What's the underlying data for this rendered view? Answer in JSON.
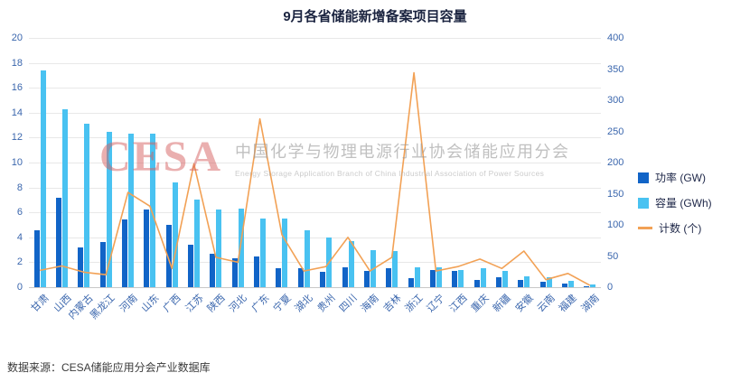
{
  "source": "数据来源：CESA储能应用分会产业数据库",
  "watermark": {
    "logo": "CESA",
    "cn": "中国化学与物理电源行业协会储能应用分会",
    "en": "Energy Storage Application Branch of China Industrial Association of Power Sources"
  },
  "colors": {
    "power": "#1164c7",
    "capacity": "#49c2f1",
    "count": "#f2a155",
    "axis_label": "#3a66ad",
    "grid": "#e8e8e8",
    "zero_line": "#c8c8c8",
    "title": "#1b2440"
  },
  "chart_data": {
    "type": "bar",
    "subtype": "bar+line combo, dual y-axis",
    "title": "9月各省储能新增备案项目容量",
    "categories": [
      "甘肃",
      "山西",
      "内蒙古",
      "黑龙江",
      "河南",
      "山东",
      "广西",
      "江苏",
      "陕西",
      "河北",
      "广东",
      "宁夏",
      "湖北",
      "贵州",
      "四川",
      "海南",
      "吉林",
      "浙江",
      "辽宁",
      "江西",
      "重庆",
      "新疆",
      "安徽",
      "云南",
      "福建",
      "湖南"
    ],
    "series": [
      {
        "name": "功率 (GW)",
        "type": "bar",
        "axis": "left",
        "values": [
          4.6,
          7.2,
          3.2,
          3.6,
          5.4,
          6.2,
          5.0,
          3.4,
          2.7,
          2.3,
          2.5,
          1.5,
          1.5,
          1.2,
          1.6,
          1.3,
          1.5,
          0.7,
          1.4,
          1.3,
          0.6,
          0.8,
          0.6,
          0.4,
          0.3,
          0.1
        ]
      },
      {
        "name": "容量 (GWh)",
        "type": "bar",
        "axis": "left",
        "values": [
          17.4,
          14.3,
          13.1,
          12.5,
          12.3,
          12.3,
          8.4,
          7.0,
          6.2,
          6.3,
          5.5,
          5.5,
          4.6,
          4.0,
          3.7,
          3.0,
          2.9,
          1.6,
          1.6,
          1.4,
          1.5,
          1.3,
          0.9,
          0.8,
          0.5,
          0.2
        ]
      },
      {
        "name": "计数 (个)",
        "type": "line",
        "axis": "right",
        "values": [
          27,
          34,
          24,
          20,
          152,
          130,
          30,
          198,
          48,
          40,
          270,
          84,
          26,
          33,
          80,
          26,
          48,
          344,
          26,
          33,
          45,
          30,
          58,
          12,
          22,
          3
        ]
      }
    ],
    "left_axis": {
      "min": 0,
      "max": 20,
      "ticks": [
        0,
        2,
        4,
        6,
        8,
        10,
        12,
        14,
        16,
        18,
        20
      ]
    },
    "right_axis": {
      "min": 0,
      "max": 400,
      "ticks": [
        0,
        50,
        100,
        150,
        200,
        250,
        300,
        350,
        400
      ]
    },
    "legend_position": "right",
    "grid": true
  }
}
